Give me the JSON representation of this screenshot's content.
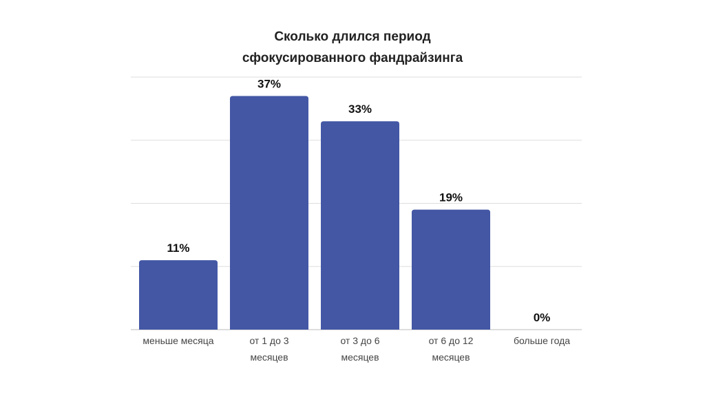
{
  "chart_data": {
    "type": "bar",
    "title_lines": [
      "Сколько длился период",
      "сфокусированного фандрайзинга"
    ],
    "categories": [
      [
        "меньше месяца"
      ],
      [
        "от 1 до 3",
        "месяцев"
      ],
      [
        "от 3 до 6",
        "месяцев"
      ],
      [
        "от 6 до 12",
        "месяцев"
      ],
      [
        "больше года"
      ]
    ],
    "values": [
      11,
      37,
      33,
      19,
      0
    ],
    "value_labels": [
      "11%",
      "37%",
      "33%",
      "19%",
      "0%"
    ],
    "xlabel": "",
    "ylabel": "",
    "ylim": [
      0,
      40
    ],
    "grid_step": 10,
    "grid": true,
    "bar_color": "#4357a5"
  }
}
